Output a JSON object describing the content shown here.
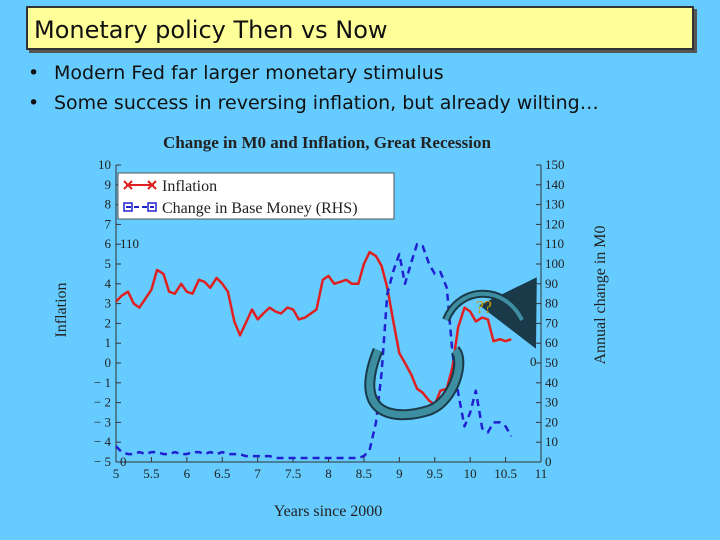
{
  "slide": {
    "title": "Monetary policy Then vs Now",
    "bullets": [
      "Modern Fed far larger monetary stimulus",
      "Some success in reversing inflation, but already wilting…"
    ]
  },
  "chart_data": {
    "type": "line",
    "title": "Change in M0 and Inflation, Great Recession",
    "xlabel": "Years since 2000",
    "ylabel": "Inflation",
    "y2label": "Annual change in M0",
    "xlim": [
      5,
      11
    ],
    "ylim": [
      -5,
      10
    ],
    "y2lim": [
      0,
      150
    ],
    "x_ticks": [
      5,
      5.5,
      6,
      6.5,
      7,
      7.5,
      8,
      8.5,
      9,
      9.5,
      10,
      10.5,
      11
    ],
    "y_ticks": [
      -5,
      -4,
      -3,
      -2,
      -1,
      0,
      1,
      2,
      3,
      4,
      5,
      6,
      7,
      8,
      9,
      10
    ],
    "y_tick_labels": [
      "− 5",
      "− 4",
      "− 3",
      "− 2",
      "− 1",
      "0",
      "1",
      "2",
      "3",
      "4",
      "5",
      "6",
      "7",
      "8",
      "9",
      "10"
    ],
    "y2_ticks": [
      0,
      10,
      20,
      30,
      40,
      50,
      60,
      70,
      80,
      90,
      100,
      110,
      120,
      130,
      140,
      150
    ],
    "legend": {
      "placement": "top-left"
    },
    "annotations": [
      "110",
      "0",
      "0",
      "??"
    ],
    "series": [
      {
        "name": "Inflation",
        "axis": "left",
        "color": "#e02020",
        "style": "solid",
        "points": [
          [
            5.0,
            3.1
          ],
          [
            5.08,
            3.4
          ],
          [
            5.17,
            3.6
          ],
          [
            5.25,
            3.0
          ],
          [
            5.33,
            2.8
          ],
          [
            5.5,
            3.7
          ],
          [
            5.58,
            4.7
          ],
          [
            5.67,
            4.5
          ],
          [
            5.75,
            3.6
          ],
          [
            5.83,
            3.5
          ],
          [
            5.92,
            4.0
          ],
          [
            6.0,
            3.6
          ],
          [
            6.08,
            3.5
          ],
          [
            6.17,
            4.2
          ],
          [
            6.25,
            4.1
          ],
          [
            6.33,
            3.8
          ],
          [
            6.42,
            4.3
          ],
          [
            6.5,
            4.0
          ],
          [
            6.58,
            3.6
          ],
          [
            6.67,
            2.1
          ],
          [
            6.75,
            1.4
          ],
          [
            6.83,
            2.0
          ],
          [
            6.92,
            2.7
          ],
          [
            7.0,
            2.2
          ],
          [
            7.08,
            2.5
          ],
          [
            7.17,
            2.8
          ],
          [
            7.25,
            2.6
          ],
          [
            7.33,
            2.5
          ],
          [
            7.42,
            2.8
          ],
          [
            7.5,
            2.7
          ],
          [
            7.58,
            2.2
          ],
          [
            7.67,
            2.3
          ],
          [
            7.75,
            2.5
          ],
          [
            7.83,
            2.7
          ],
          [
            7.92,
            4.2
          ],
          [
            8.0,
            4.4
          ],
          [
            8.08,
            4.0
          ],
          [
            8.17,
            4.1
          ],
          [
            8.25,
            4.2
          ],
          [
            8.33,
            4.0
          ],
          [
            8.42,
            4.0
          ],
          [
            8.5,
            5.0
          ],
          [
            8.58,
            5.6
          ],
          [
            8.67,
            5.4
          ],
          [
            8.75,
            4.9
          ],
          [
            8.83,
            3.8
          ],
          [
            8.92,
            2.0
          ],
          [
            9.0,
            0.5
          ],
          [
            9.08,
            0.0
          ],
          [
            9.17,
            -0.6
          ],
          [
            9.25,
            -1.3
          ],
          [
            9.33,
            -1.5
          ],
          [
            9.42,
            -1.9
          ],
          [
            9.5,
            -2.1
          ],
          [
            9.58,
            -1.4
          ],
          [
            9.67,
            -1.3
          ],
          [
            9.75,
            -0.2
          ],
          [
            9.83,
            1.8
          ],
          [
            9.92,
            2.8
          ],
          [
            10.0,
            2.6
          ],
          [
            10.08,
            2.1
          ],
          [
            10.17,
            2.3
          ],
          [
            10.25,
            2.2
          ],
          [
            10.33,
            1.1
          ],
          [
            10.42,
            1.2
          ],
          [
            10.5,
            1.1
          ],
          [
            10.58,
            1.2
          ]
        ]
      },
      {
        "name": "Change in Base Money (RHS)",
        "axis": "right",
        "color": "#2020d0",
        "style": "dashed",
        "points": [
          [
            5.0,
            8
          ],
          [
            5.08,
            5
          ],
          [
            5.17,
            4
          ],
          [
            5.25,
            4
          ],
          [
            5.33,
            5
          ],
          [
            5.42,
            4
          ],
          [
            5.5,
            5
          ],
          [
            5.58,
            5
          ],
          [
            5.67,
            4
          ],
          [
            5.75,
            4
          ],
          [
            5.83,
            5
          ],
          [
            5.92,
            4
          ],
          [
            6.0,
            4
          ],
          [
            6.08,
            5
          ],
          [
            6.17,
            5
          ],
          [
            6.25,
            4
          ],
          [
            6.33,
            5
          ],
          [
            6.42,
            4
          ],
          [
            6.5,
            5
          ],
          [
            6.58,
            4
          ],
          [
            6.67,
            4
          ],
          [
            6.75,
            4
          ],
          [
            6.83,
            3
          ],
          [
            6.92,
            3
          ],
          [
            7.0,
            3
          ],
          [
            7.08,
            3
          ],
          [
            7.17,
            3
          ],
          [
            7.25,
            2
          ],
          [
            7.33,
            2
          ],
          [
            7.42,
            2
          ],
          [
            7.5,
            2
          ],
          [
            7.58,
            2
          ],
          [
            7.67,
            2
          ],
          [
            7.75,
            2
          ],
          [
            7.83,
            2
          ],
          [
            7.92,
            2
          ],
          [
            8.0,
            2
          ],
          [
            8.08,
            2
          ],
          [
            8.17,
            2
          ],
          [
            8.25,
            2
          ],
          [
            8.33,
            2
          ],
          [
            8.42,
            2
          ],
          [
            8.5,
            3
          ],
          [
            8.58,
            6
          ],
          [
            8.67,
            20
          ],
          [
            8.75,
            45
          ],
          [
            8.83,
            85
          ],
          [
            8.92,
            97
          ],
          [
            9.0,
            105
          ],
          [
            9.08,
            90
          ],
          [
            9.17,
            101
          ],
          [
            9.25,
            110
          ],
          [
            9.33,
            109
          ],
          [
            9.42,
            100
          ],
          [
            9.5,
            95
          ],
          [
            9.58,
            96
          ],
          [
            9.67,
            88
          ],
          [
            9.75,
            55
          ],
          [
            9.83,
            35
          ],
          [
            9.92,
            18
          ],
          [
            10.0,
            25
          ],
          [
            10.08,
            36
          ],
          [
            10.17,
            17
          ],
          [
            10.25,
            15
          ],
          [
            10.33,
            20
          ],
          [
            10.42,
            20
          ],
          [
            10.5,
            18
          ],
          [
            10.58,
            13
          ]
        ]
      }
    ]
  }
}
